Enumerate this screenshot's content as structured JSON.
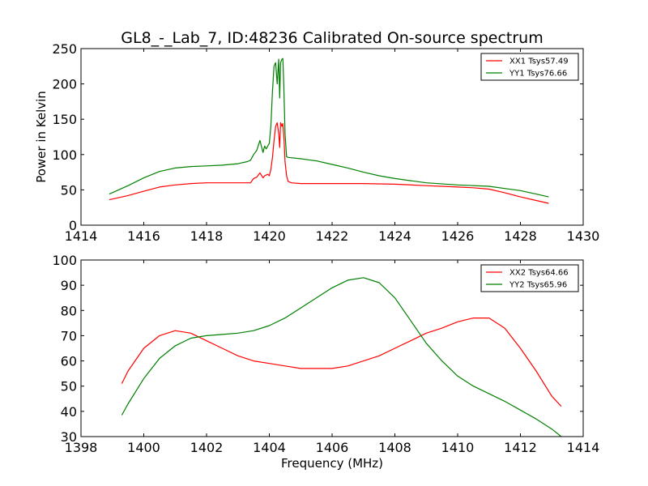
{
  "title": "GL8_-_Lab_7, ID:48236 Calibrated On-source spectrum",
  "chart_data": [
    {
      "type": "line",
      "xlabel": "",
      "ylabel": "Power in Kelvin",
      "xlim": [
        1414,
        1430
      ],
      "ylim": [
        0,
        250
      ],
      "xticks": [
        1414,
        1416,
        1418,
        1420,
        1422,
        1424,
        1426,
        1428,
        1430
      ],
      "yticks": [
        0,
        50,
        100,
        150,
        200,
        250
      ],
      "legend_position": "top-right",
      "grid": false,
      "series": [
        {
          "name": "XX1 Tsys57.49",
          "color": "#ff0000",
          "x": [
            1414.9,
            1415.5,
            1416.0,
            1416.5,
            1417.0,
            1417.5,
            1418.0,
            1418.5,
            1419.0,
            1419.4,
            1419.5,
            1419.6,
            1419.7,
            1419.8,
            1419.85,
            1419.95,
            1420.0,
            1420.05,
            1420.1,
            1420.15,
            1420.2,
            1420.25,
            1420.3,
            1420.33,
            1420.36,
            1420.4,
            1420.43,
            1420.47,
            1420.5,
            1420.55,
            1420.6,
            1420.7,
            1421.0,
            1421.5,
            1422.0,
            1423.0,
            1424.0,
            1425.0,
            1426.0,
            1426.5,
            1427.0,
            1427.5,
            1428.0,
            1428.5,
            1428.9
          ],
          "y": [
            36,
            42,
            48,
            54,
            57,
            59,
            60,
            60,
            60,
            60,
            66,
            68,
            74,
            67,
            70,
            72,
            70,
            79,
            96,
            120,
            140,
            145,
            130,
            110,
            145,
            140,
            144,
            120,
            90,
            70,
            62,
            60,
            59,
            59,
            59,
            59,
            58,
            56,
            54,
            53,
            51,
            46,
            40,
            35,
            31
          ]
        },
        {
          "name": "YY1 Tsys76.66",
          "color": "#008000",
          "x": [
            1414.9,
            1415.5,
            1416.0,
            1416.5,
            1417.0,
            1417.5,
            1418.0,
            1418.5,
            1419.0,
            1419.3,
            1419.4,
            1419.5,
            1419.6,
            1419.7,
            1419.8,
            1419.85,
            1419.9,
            1420.0,
            1420.05,
            1420.1,
            1420.15,
            1420.2,
            1420.25,
            1420.3,
            1420.33,
            1420.36,
            1420.4,
            1420.43,
            1420.46,
            1420.5,
            1420.55,
            1420.6,
            1421.0,
            1421.5,
            1422.0,
            1422.5,
            1423.0,
            1423.5,
            1424.0,
            1425.0,
            1426.0,
            1427.0,
            1427.5,
            1428.0,
            1428.5,
            1428.9
          ],
          "y": [
            44,
            56,
            67,
            76,
            81,
            83,
            84,
            85,
            87,
            90,
            92,
            100,
            106,
            120,
            103,
            112,
            108,
            116,
            140,
            190,
            225,
            230,
            200,
            235,
            180,
            230,
            235,
            236,
            200,
            130,
            97,
            96,
            94,
            91,
            86,
            81,
            75,
            70,
            66,
            60,
            57,
            55,
            52,
            49,
            44,
            40
          ]
        }
      ]
    },
    {
      "type": "line",
      "xlabel": "Frequency (MHz)",
      "ylabel": "",
      "xlim": [
        1398,
        1414
      ],
      "ylim": [
        30,
        100
      ],
      "xticks": [
        1398,
        1400,
        1402,
        1404,
        1406,
        1408,
        1410,
        1412,
        1414
      ],
      "yticks": [
        30,
        40,
        50,
        60,
        70,
        80,
        90,
        100
      ],
      "legend_position": "top-right",
      "grid": false,
      "series": [
        {
          "name": "XX2 Tsys64.66",
          "color": "#ff0000",
          "x": [
            1399.3,
            1399.5,
            1400.0,
            1400.5,
            1401.0,
            1401.5,
            1402.0,
            1402.5,
            1403.0,
            1403.5,
            1404.0,
            1404.5,
            1405.0,
            1405.5,
            1406.0,
            1406.5,
            1407.0,
            1407.5,
            1408.0,
            1408.5,
            1409.0,
            1409.5,
            1410.0,
            1410.5,
            1411.0,
            1411.5,
            1412.0,
            1412.5,
            1413.0,
            1413.3
          ],
          "y": [
            51,
            56,
            65,
            70,
            72,
            71,
            68,
            65,
            62,
            60,
            59,
            58,
            57,
            57,
            57,
            58,
            60,
            62,
            65,
            68,
            71,
            73,
            75.5,
            77,
            77,
            73,
            65,
            56,
            46,
            42
          ]
        },
        {
          "name": "YY2 Tsys65.96",
          "color": "#008000",
          "x": [
            1399.3,
            1399.5,
            1400.0,
            1400.5,
            1401.0,
            1401.5,
            1402.0,
            1402.5,
            1403.0,
            1403.5,
            1404.0,
            1404.5,
            1405.0,
            1405.5,
            1406.0,
            1406.5,
            1407.0,
            1407.5,
            1408.0,
            1408.5,
            1409.0,
            1409.5,
            1410.0,
            1410.5,
            1411.0,
            1411.5,
            1412.0,
            1412.5,
            1413.0,
            1413.3
          ],
          "y": [
            38.5,
            43,
            53,
            61,
            66,
            69,
            70,
            70.5,
            71,
            72,
            74,
            77,
            81,
            85,
            89,
            92,
            93,
            91,
            85,
            76,
            67,
            60,
            54,
            50,
            47,
            44,
            40.5,
            37,
            33,
            30
          ]
        }
      ]
    }
  ]
}
